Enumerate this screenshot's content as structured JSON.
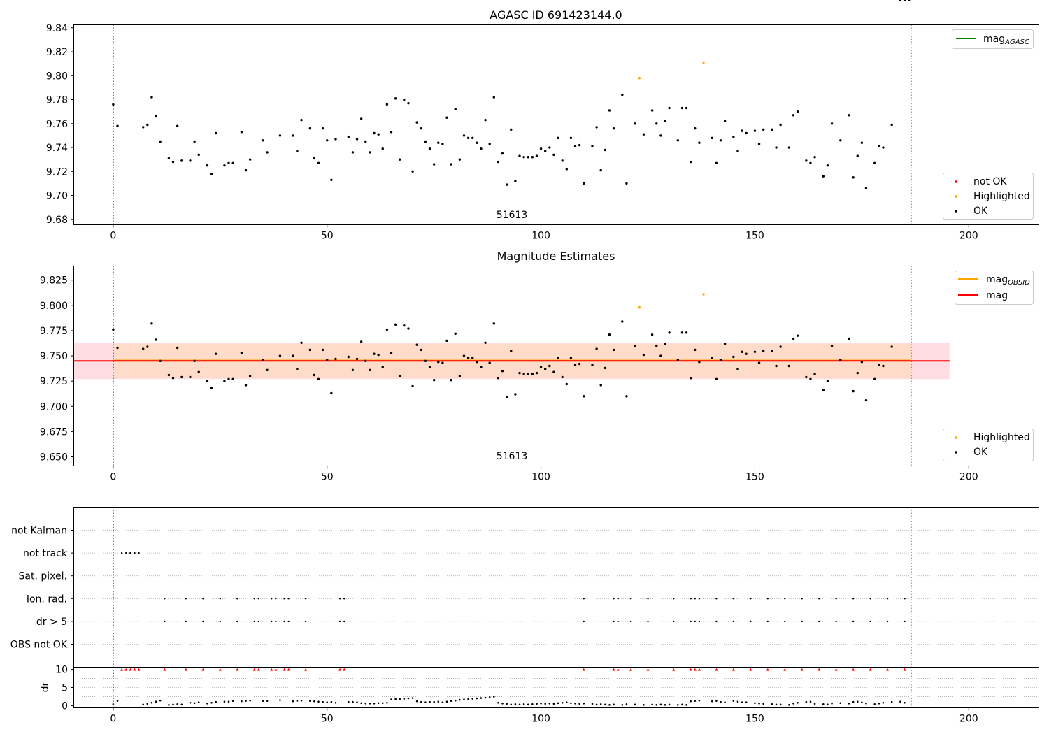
{
  "chart_data": [
    {
      "type": "scatter",
      "title": "AGASC ID 691423144.0",
      "xlim": [
        -9.3,
        216.3
      ],
      "ylim": [
        9.6755,
        9.8425
      ],
      "xticks": [
        0,
        50,
        100,
        150,
        200
      ],
      "yticks": [
        9.68,
        9.7,
        9.72,
        9.74,
        9.76,
        9.78,
        9.8,
        9.82,
        9.84
      ],
      "ytick_decimals": 2,
      "annotation": "51613",
      "obs_boundaries": [
        0,
        186.5
      ],
      "legend_lines": [
        {
          "label": "mag",
          "sub": "AGASC",
          "color": "#008000"
        }
      ],
      "legend_points": [
        {
          "label": "not OK",
          "color": "#ff0000"
        },
        {
          "label": "Highlighted",
          "color": "#ffa500"
        },
        {
          "label": "OK",
          "color": "#000000"
        }
      ],
      "highlighted_points": [
        [
          123,
          9.798
        ],
        [
          138,
          9.811
        ]
      ],
      "ok_y": [
        9.776,
        9.758,
        9.757,
        9.759,
        9.782,
        9.766,
        9.745,
        9.731,
        9.728,
        9.758,
        9.729,
        9.729,
        9.745,
        9.734,
        9.725,
        9.718,
        9.752,
        9.725,
        9.727,
        9.727,
        9.753,
        9.721,
        9.73,
        9.746,
        9.736,
        9.75,
        9.75,
        9.737,
        9.763,
        9.756,
        9.731,
        9.727,
        9.756,
        9.746,
        9.713,
        9.747,
        9.749,
        9.736,
        9.747,
        9.764,
        9.745,
        9.736,
        9.752,
        9.751,
        9.739,
        9.776,
        9.753,
        9.781,
        9.73,
        9.78,
        9.777,
        9.72,
        9.761,
        9.756,
        9.745,
        9.739,
        9.726,
        9.744,
        9.743,
        9.765,
        9.726,
        9.772,
        9.73,
        9.75,
        9.748,
        9.748,
        9.744,
        9.739,
        9.763,
        9.743,
        9.782,
        9.728,
        9.735,
        9.709,
        9.755,
        9.712,
        9.733,
        9.732,
        9.732,
        9.732,
        9.733,
        9.739,
        9.737,
        9.74,
        9.734,
        9.748,
        9.729,
        9.722,
        9.748,
        9.741,
        9.742,
        9.71,
        9.741,
        9.757,
        9.721,
        9.738,
        9.771,
        9.756,
        9.784,
        9.71,
        9.76,
        9.751,
        9.771,
        9.76,
        9.75,
        9.762,
        9.773,
        9.746,
        9.773,
        9.773,
        9.728,
        9.756,
        9.744,
        9.748,
        9.727,
        9.746,
        9.762,
        9.749,
        9.737,
        9.754,
        9.752,
        9.754,
        9.743,
        9.755,
        9.755,
        9.74,
        9.759,
        9.74,
        9.767,
        9.77,
        9.729,
        9.727,
        9.732,
        9.716,
        9.725,
        9.76,
        9.746,
        9.767,
        9.715,
        9.733,
        9.744,
        9.706,
        9.727,
        9.741,
        9.74,
        9.759
      ],
      "ok_x": [
        0,
        1,
        7,
        8,
        9,
        10,
        11,
        13,
        14,
        15,
        16,
        18,
        19,
        20,
        22,
        23,
        24,
        26,
        27,
        28,
        30,
        31,
        32,
        35,
        36,
        39,
        42,
        43,
        44,
        46,
        47,
        48,
        49,
        50,
        51,
        52,
        55,
        56,
        57,
        58,
        59,
        60,
        61,
        62,
        63,
        64,
        65,
        66,
        67,
        68,
        69,
        70,
        71,
        72,
        73,
        74,
        75,
        76,
        77,
        78,
        79,
        80,
        81,
        82,
        83,
        84,
        85,
        86,
        87,
        88,
        89,
        90,
        91,
        92,
        93,
        94,
        95,
        96,
        97,
        98,
        99,
        100,
        101,
        102,
        103,
        104,
        105,
        106,
        107,
        108,
        109,
        110,
        112,
        113,
        114,
        115,
        116,
        117,
        119,
        120,
        122,
        124,
        126,
        127,
        128,
        129,
        130,
        132,
        133,
        134,
        135,
        136,
        137,
        140,
        141,
        142,
        143,
        145,
        146,
        147,
        148,
        150,
        151,
        152,
        154,
        155,
        156,
        158,
        159,
        160,
        162,
        163,
        164,
        166,
        167,
        168,
        170,
        172,
        173,
        174,
        175,
        176,
        178,
        179,
        180,
        182,
        184,
        185,
        186
      ]
    },
    {
      "type": "scatter",
      "title": "Magnitude Estimates",
      "xlim": [
        -9.3,
        216.3
      ],
      "ylim": [
        9.641,
        9.839
      ],
      "xticks": [
        0,
        50,
        100,
        150,
        200
      ],
      "yticks": [
        9.65,
        9.675,
        9.7,
        9.725,
        9.75,
        9.775,
        9.8,
        9.825
      ],
      "ytick_decimals": 3,
      "annotation": "51613",
      "obs_boundaries": [
        0,
        186.5
      ],
      "mag_line": {
        "value": 9.745,
        "x_range": [
          -9.3,
          195.5
        ],
        "color": "#ff0000"
      },
      "obsid_line": {
        "value": 9.7455,
        "x_range": [
          0,
          186.5
        ],
        "color": "#ffa500"
      },
      "band_outer": {
        "low": 9.727,
        "high": 9.763,
        "x_range": [
          -9.3,
          195.5
        ],
        "color": "#ffdde3"
      },
      "band_inner": {
        "low": 9.728,
        "high": 9.762,
        "x_range": [
          0,
          186.5
        ],
        "color": "#ffdcc6"
      },
      "legend_lines": [
        {
          "label": "mag",
          "sub": "OBSID",
          "color": "#ffa500"
        },
        {
          "label": "mag",
          "sub": "",
          "color": "#ff0000"
        }
      ],
      "legend_points": [
        {
          "label": "Highlighted",
          "color": "#ffa500"
        },
        {
          "label": "OK",
          "color": "#000000"
        }
      ]
    },
    {
      "type": "scatter",
      "title": "",
      "xlim": [
        -9.3,
        216.3
      ],
      "flag_labels": [
        "not Kalman",
        "not track",
        "Sat. pixel.",
        "Ion. rad.",
        "dr > 5",
        "OBS not OK"
      ],
      "flag_points": {
        "not track": [
          2,
          3,
          4,
          5,
          6
        ],
        "Ion. rad.": [
          12,
          17,
          21,
          25,
          29,
          33,
          34,
          37,
          38,
          40,
          41,
          45,
          53,
          54,
          110,
          117,
          118,
          121,
          125,
          131,
          135,
          136,
          137,
          141,
          145,
          149,
          153,
          157,
          161,
          165,
          169,
          173,
          177,
          181,
          185
        ],
        "dr > 5": [
          12,
          17,
          21,
          25,
          29,
          33,
          34,
          37,
          38,
          40,
          41,
          45,
          53,
          54,
          110,
          117,
          118,
          121,
          125,
          131,
          135,
          136,
          137,
          141,
          145,
          149,
          153,
          157,
          161,
          165,
          169,
          173,
          177,
          181,
          185
        ]
      },
      "dr_ylabel": "dr",
      "dr_yticks": [
        0,
        5,
        10
      ],
      "dr_ylim": [
        -0.6,
        10.6
      ],
      "dr_clipped_x": [
        2,
        3,
        4,
        5,
        6,
        12,
        17,
        21,
        25,
        29,
        33,
        34,
        37,
        38,
        40,
        41,
        45,
        53,
        54,
        110,
        117,
        118,
        121,
        125,
        131,
        135,
        136,
        137,
        141,
        145,
        149,
        153,
        157,
        161,
        165,
        169,
        173,
        177,
        181,
        185
      ],
      "dr_x": [
        0,
        1,
        7,
        8,
        9,
        10,
        11,
        13,
        14,
        15,
        16,
        18,
        19,
        20,
        22,
        23,
        24,
        26,
        27,
        28,
        30,
        31,
        32,
        35,
        36,
        39,
        42,
        43,
        44,
        46,
        47,
        48,
        49,
        50,
        51,
        52,
        55,
        56,
        57,
        58,
        59,
        60,
        61,
        62,
        63,
        64,
        65,
        66,
        67,
        68,
        69,
        70,
        71,
        72,
        73,
        74,
        75,
        76,
        77,
        78,
        79,
        80,
        81,
        82,
        83,
        84,
        85,
        86,
        87,
        88,
        89,
        90,
        91,
        92,
        93,
        94,
        95,
        96,
        97,
        98,
        99,
        100,
        101,
        102,
        103,
        104,
        105,
        106,
        107,
        108,
        109,
        110,
        112,
        113,
        114,
        115,
        116,
        117,
        119,
        120,
        122,
        124,
        126,
        127,
        128,
        129,
        130,
        132,
        133,
        134,
        135,
        136,
        137,
        140,
        141,
        142,
        143,
        145,
        146,
        147,
        148,
        150,
        151,
        152,
        154,
        155,
        156,
        158,
        159,
        160,
        162,
        163,
        164,
        166,
        167,
        168,
        170,
        172,
        173,
        174,
        175,
        176,
        178,
        179,
        180,
        182,
        184,
        185,
        186
      ],
      "dr_y": [
        0.4,
        1.3,
        0.3,
        0.5,
        0.8,
        1.1,
        1.4,
        0.2,
        0.3,
        0.4,
        0.3,
        0.8,
        0.7,
        0.9,
        0.6,
        0.8,
        1.0,
        1.1,
        1.1,
        1.3,
        1.2,
        1.3,
        1.4,
        1.3,
        1.3,
        1.5,
        1.2,
        1.3,
        1.4,
        1.3,
        1.2,
        1.1,
        1.0,
        0.9,
        1.0,
        0.8,
        1.0,
        1.0,
        0.9,
        0.7,
        0.6,
        0.6,
        0.6,
        0.7,
        0.7,
        0.8,
        1.7,
        1.8,
        1.8,
        1.9,
        2.0,
        2.1,
        1.2,
        1.0,
        0.9,
        1.0,
        1.0,
        1.1,
        0.9,
        1.1,
        1.3,
        1.4,
        1.6,
        1.7,
        1.8,
        1.9,
        2.0,
        2.1,
        2.2,
        2.3,
        2.5,
        0.8,
        0.6,
        0.5,
        0.3,
        0.4,
        0.3,
        0.4,
        0.3,
        0.4,
        0.5,
        0.6,
        0.5,
        0.6,
        0.5,
        0.7,
        0.8,
        0.9,
        0.7,
        0.6,
        0.5,
        0.6,
        0.5,
        0.3,
        0.4,
        0.3,
        0.2,
        0.3,
        0.2,
        0.4,
        0.3,
        0.2,
        0.3,
        0.2,
        0.3,
        0.2,
        0.3,
        0.2,
        0.3,
        0.2,
        1.2,
        1.3,
        1.4,
        1.2,
        1.3,
        1.0,
        0.9,
        1.3,
        1.1,
        0.9,
        0.9,
        0.7,
        0.6,
        0.5,
        0.4,
        0.3,
        0.3,
        0.2,
        0.6,
        0.8,
        1.0,
        1.1,
        0.5,
        0.4,
        0.3,
        0.6,
        0.7,
        0.6,
        1.0,
        1.1,
        0.9,
        0.6,
        0.4,
        0.6,
        0.8,
        1.0,
        1.1,
        0.8
      ]
    }
  ]
}
